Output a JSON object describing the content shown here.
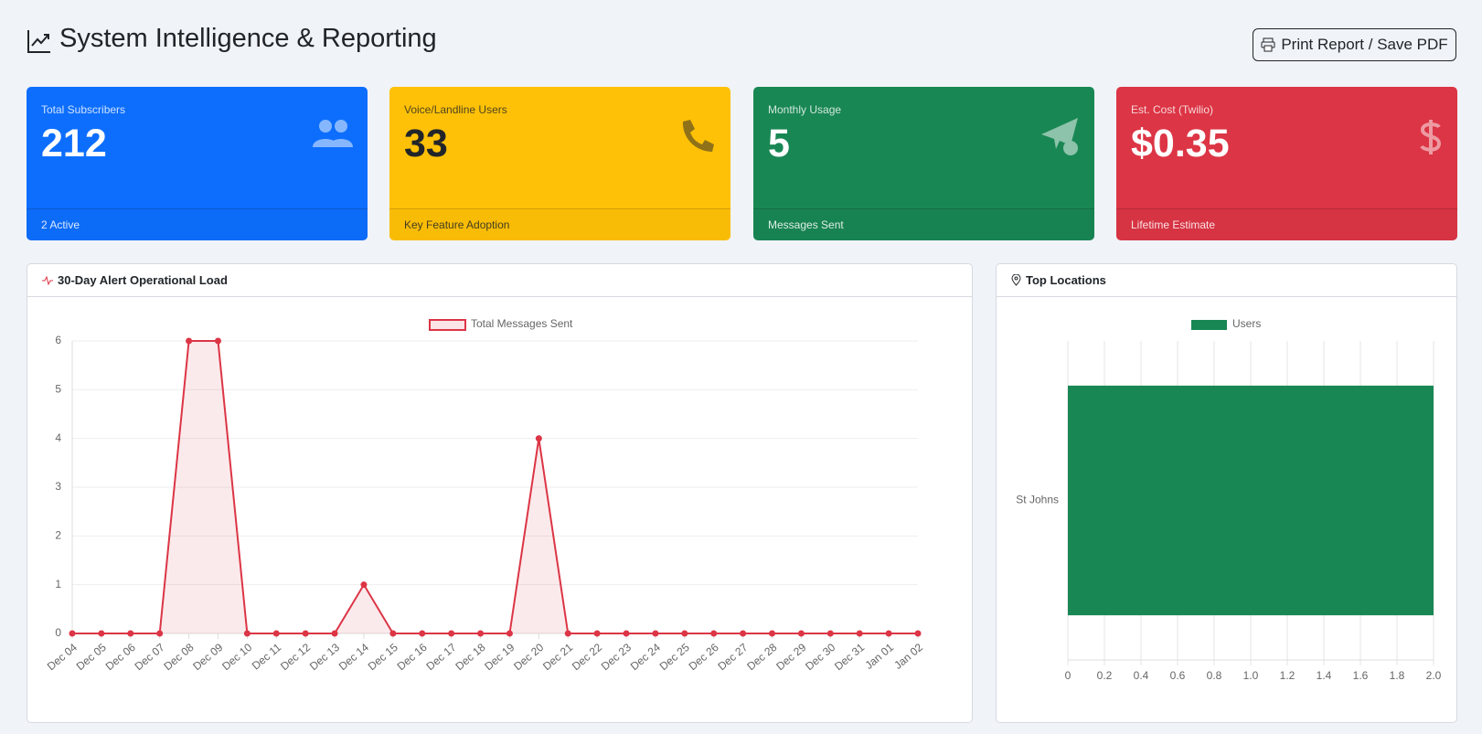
{
  "header": {
    "title": "System Intelligence & Reporting",
    "button": "Print Report / Save PDF"
  },
  "cards": [
    {
      "label": "Total Subscribers",
      "value": 212,
      "footer": "2 Active"
    },
    {
      "label": "Voice/Landline Users",
      "value": 33,
      "footer": "Key Feature Adoption"
    },
    {
      "label": "Monthly Usage",
      "value": 5,
      "footer": "Messages Sent"
    },
    {
      "label": "Est. Cost (Twilio)",
      "value": "$0.35",
      "footer": "Lifetime Estimate"
    }
  ],
  "chart_data": [
    {
      "type": "line",
      "title": "30-Day Alert Operational Load",
      "categories": [
        "Dec 04",
        "Dec 05",
        "Dec 06",
        "Dec 07",
        "Dec 08",
        "Dec 09",
        "Dec 10",
        "Dec 11",
        "Dec 12",
        "Dec 13",
        "Dec 14",
        "Dec 15",
        "Dec 16",
        "Dec 17",
        "Dec 18",
        "Dec 19",
        "Dec 20",
        "Dec 21",
        "Dec 22",
        "Dec 23",
        "Dec 24",
        "Dec 25",
        "Dec 26",
        "Dec 27",
        "Dec 28",
        "Dec 29",
        "Dec 30",
        "Dec 31",
        "Jan 01",
        "Jan 02"
      ],
      "series": [
        {
          "name": "Total Messages Sent",
          "color": "#dc3545",
          "values": [
            0,
            0,
            0,
            0,
            6,
            6,
            0,
            0,
            0,
            0,
            1,
            0,
            0,
            0,
            0,
            0,
            4,
            0,
            0,
            0,
            0,
            0,
            0,
            0,
            0,
            0,
            0,
            0,
            0,
            0
          ]
        }
      ],
      "ylim": [
        0,
        6
      ],
      "yticks": [
        0,
        1,
        2,
        3,
        4,
        5,
        6
      ],
      "grid": true
    },
    {
      "type": "hbar",
      "title": "Top Locations",
      "categories": [
        "St Johns"
      ],
      "series": [
        {
          "name": "Users",
          "color": "#198754",
          "values": [
            2
          ]
        }
      ],
      "xlim": [
        0,
        2
      ],
      "xticks": [
        0,
        0.2,
        0.4,
        0.6,
        0.8,
        {
          "value": 1,
          "label": "1.0"
        },
        1.2,
        1.4,
        1.6,
        1.8,
        {
          "value": 2,
          "label": "2.0"
        }
      ],
      "grid": true
    }
  ]
}
